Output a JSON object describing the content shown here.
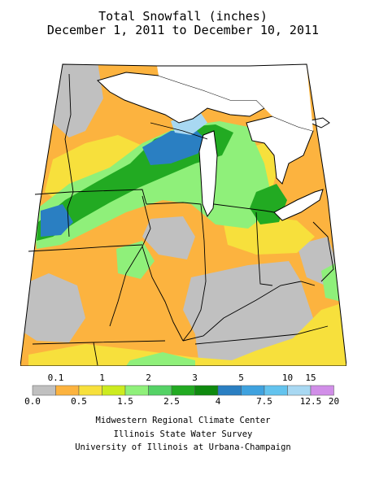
{
  "title": "Total Snowfall (inches)",
  "subtitle": "December 1, 2011 to December 10, 2011",
  "legend": {
    "upper_labels": [
      "0.1",
      "1",
      "2",
      "3",
      "5",
      "10",
      "15"
    ],
    "lower_labels": [
      "0.0",
      "0.5",
      "1.5",
      "2.5",
      "4",
      "7.5",
      "12.5",
      "20"
    ],
    "colors": [
      "#c0c0c0",
      "#fcb33f",
      "#f7e03c",
      "#cceb1f",
      "#8ff07a",
      "#55d266",
      "#22aa22",
      "#0f8a0f",
      "#2a7fc2",
      "#3fa2df",
      "#63c3ee",
      "#a8d8f2",
      "#d18ee8"
    ]
  },
  "map": {
    "region": "Midwest United States",
    "classes": {
      "under_0_1": "#c0c0c0",
      "in_0_1_to_1": "#fcb33f",
      "in_1_to_2": "#f7e03c",
      "in_2_to_3": "#8ff07a",
      "in_3_to_5": "#22aa22",
      "in_5_to_10": "#2a7fc2",
      "in_10_to_15": "#a8d8f2",
      "water": "#ffffff"
    }
  },
  "credits": [
    "Midwestern Regional Climate Center",
    "Illinois State Water Survey",
    "University of Illinois at Urbana-Champaign"
  ]
}
